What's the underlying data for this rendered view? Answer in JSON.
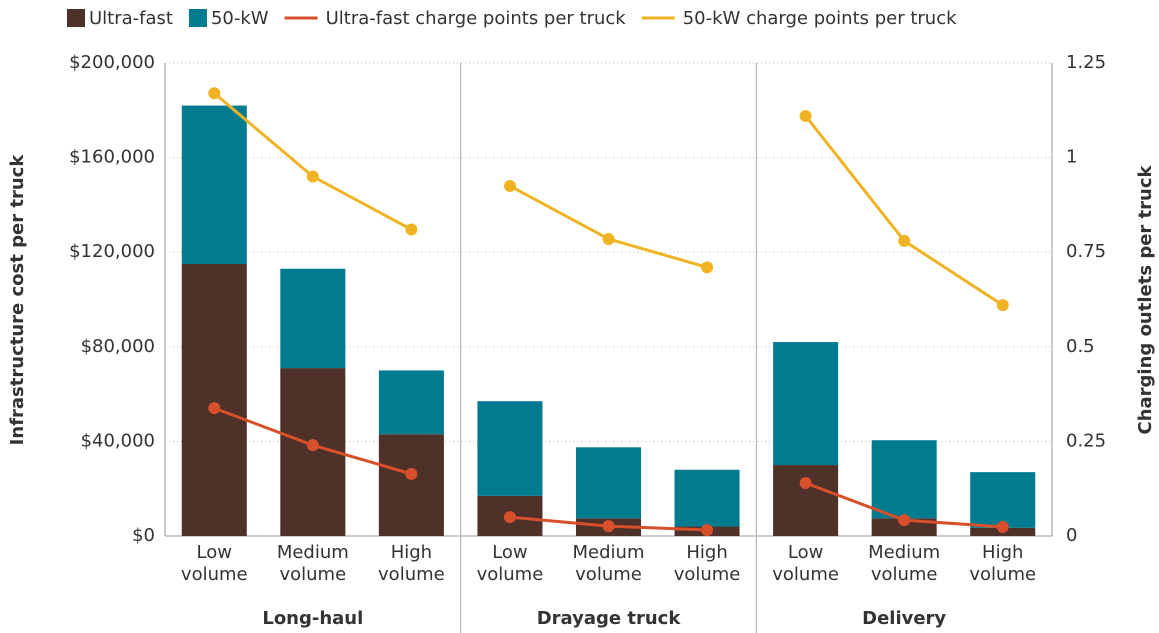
{
  "chart_data": {
    "type": "bar",
    "stacked": true,
    "groups": [
      {
        "name": "Long-haul",
        "categories": [
          "Low volume",
          "Medium volume",
          "High volume"
        ]
      },
      {
        "name": "Drayage truck",
        "categories": [
          "Low volume",
          "Medium volume",
          "High volume"
        ]
      },
      {
        "name": "Delivery",
        "categories": [
          "Low volume",
          "Medium volume",
          "High volume"
        ]
      }
    ],
    "series": [
      {
        "name": "Ultra-fast",
        "type": "bar",
        "color": "#4e3128",
        "values": [
          115000,
          71000,
          43000,
          17000,
          7500,
          4000,
          30000,
          7500,
          3500
        ]
      },
      {
        "name": "50-kW",
        "type": "bar",
        "color": "#007b8f",
        "values": [
          67000,
          42000,
          27000,
          40000,
          30000,
          24000,
          52000,
          33000,
          23500
        ]
      },
      {
        "name": "Ultra-fast charge points per truck",
        "type": "line",
        "axis": "y2",
        "color": "#d8502b",
        "values": [
          0.338,
          0.24,
          0.164,
          0.05,
          0.026,
          0.016,
          0.14,
          0.042,
          0.024
        ]
      },
      {
        "name": "50-kW charge points per truck",
        "type": "line",
        "axis": "y2",
        "color": "#f0b323",
        "values": [
          1.17,
          0.95,
          0.81,
          0.925,
          0.785,
          0.71,
          1.11,
          0.78,
          0.61
        ]
      }
    ],
    "y_label": "Infrastructure cost per truck",
    "y2_label": "Charging outlets per truck",
    "ylim": [
      0,
      200000
    ],
    "yticks": [
      {
        "value": 0,
        "label": "$0"
      },
      {
        "value": 40000,
        "label": "$40,000"
      },
      {
        "value": 80000,
        "label": "$80,000"
      },
      {
        "value": 120000,
        "label": "$120,000"
      },
      {
        "value": 160000,
        "label": "$160,000"
      },
      {
        "value": 200000,
        "label": "$200,000"
      }
    ],
    "y2lim": [
      0,
      1.25
    ],
    "y2ticks": [
      0,
      0.25,
      0.5,
      0.75,
      1,
      1.25
    ],
    "grid": true,
    "legend": "top"
  }
}
